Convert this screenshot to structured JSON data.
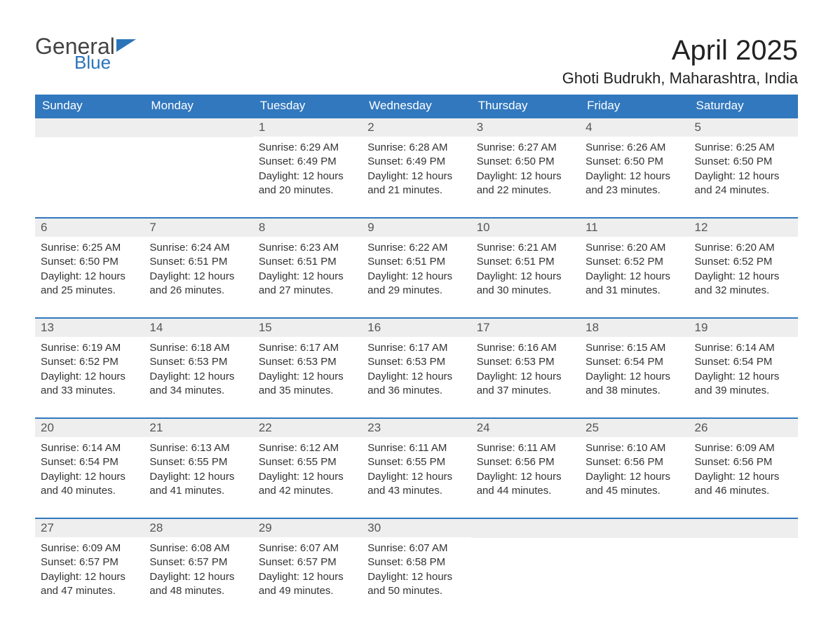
{
  "brand": {
    "word1": "General",
    "word2": "Blue"
  },
  "title": "April 2025",
  "location": "Ghoti Budrukh, Maharashtra, India",
  "colors": {
    "header_bg": "#3178be",
    "header_fg": "#ffffff",
    "daynum_bg": "#eeeeee",
    "row_divider": "#3178be",
    "page_bg": "#ffffff",
    "text": "#333333",
    "brand_blue": "#2b74ba"
  },
  "fonts": {
    "title_size_pt": 30,
    "location_size_pt": 16,
    "header_size_pt": 13,
    "body_size_pt": 11
  },
  "layout": {
    "columns": 7,
    "rows": 5,
    "aspect": "1188x918"
  },
  "weekdays": [
    "Sunday",
    "Monday",
    "Tuesday",
    "Wednesday",
    "Thursday",
    "Friday",
    "Saturday"
  ],
  "weeks": [
    [
      {
        "day": "",
        "sunrise": "",
        "sunset": "",
        "daylight": ""
      },
      {
        "day": "",
        "sunrise": "",
        "sunset": "",
        "daylight": ""
      },
      {
        "day": "1",
        "sunrise": "Sunrise: 6:29 AM",
        "sunset": "Sunset: 6:49 PM",
        "daylight": "Daylight: 12 hours and 20 minutes."
      },
      {
        "day": "2",
        "sunrise": "Sunrise: 6:28 AM",
        "sunset": "Sunset: 6:49 PM",
        "daylight": "Daylight: 12 hours and 21 minutes."
      },
      {
        "day": "3",
        "sunrise": "Sunrise: 6:27 AM",
        "sunset": "Sunset: 6:50 PM",
        "daylight": "Daylight: 12 hours and 22 minutes."
      },
      {
        "day": "4",
        "sunrise": "Sunrise: 6:26 AM",
        "sunset": "Sunset: 6:50 PM",
        "daylight": "Daylight: 12 hours and 23 minutes."
      },
      {
        "day": "5",
        "sunrise": "Sunrise: 6:25 AM",
        "sunset": "Sunset: 6:50 PM",
        "daylight": "Daylight: 12 hours and 24 minutes."
      }
    ],
    [
      {
        "day": "6",
        "sunrise": "Sunrise: 6:25 AM",
        "sunset": "Sunset: 6:50 PM",
        "daylight": "Daylight: 12 hours and 25 minutes."
      },
      {
        "day": "7",
        "sunrise": "Sunrise: 6:24 AM",
        "sunset": "Sunset: 6:51 PM",
        "daylight": "Daylight: 12 hours and 26 minutes."
      },
      {
        "day": "8",
        "sunrise": "Sunrise: 6:23 AM",
        "sunset": "Sunset: 6:51 PM",
        "daylight": "Daylight: 12 hours and 27 minutes."
      },
      {
        "day": "9",
        "sunrise": "Sunrise: 6:22 AM",
        "sunset": "Sunset: 6:51 PM",
        "daylight": "Daylight: 12 hours and 29 minutes."
      },
      {
        "day": "10",
        "sunrise": "Sunrise: 6:21 AM",
        "sunset": "Sunset: 6:51 PM",
        "daylight": "Daylight: 12 hours and 30 minutes."
      },
      {
        "day": "11",
        "sunrise": "Sunrise: 6:20 AM",
        "sunset": "Sunset: 6:52 PM",
        "daylight": "Daylight: 12 hours and 31 minutes."
      },
      {
        "day": "12",
        "sunrise": "Sunrise: 6:20 AM",
        "sunset": "Sunset: 6:52 PM",
        "daylight": "Daylight: 12 hours and 32 minutes."
      }
    ],
    [
      {
        "day": "13",
        "sunrise": "Sunrise: 6:19 AM",
        "sunset": "Sunset: 6:52 PM",
        "daylight": "Daylight: 12 hours and 33 minutes."
      },
      {
        "day": "14",
        "sunrise": "Sunrise: 6:18 AM",
        "sunset": "Sunset: 6:53 PM",
        "daylight": "Daylight: 12 hours and 34 minutes."
      },
      {
        "day": "15",
        "sunrise": "Sunrise: 6:17 AM",
        "sunset": "Sunset: 6:53 PM",
        "daylight": "Daylight: 12 hours and 35 minutes."
      },
      {
        "day": "16",
        "sunrise": "Sunrise: 6:17 AM",
        "sunset": "Sunset: 6:53 PM",
        "daylight": "Daylight: 12 hours and 36 minutes."
      },
      {
        "day": "17",
        "sunrise": "Sunrise: 6:16 AM",
        "sunset": "Sunset: 6:53 PM",
        "daylight": "Daylight: 12 hours and 37 minutes."
      },
      {
        "day": "18",
        "sunrise": "Sunrise: 6:15 AM",
        "sunset": "Sunset: 6:54 PM",
        "daylight": "Daylight: 12 hours and 38 minutes."
      },
      {
        "day": "19",
        "sunrise": "Sunrise: 6:14 AM",
        "sunset": "Sunset: 6:54 PM",
        "daylight": "Daylight: 12 hours and 39 minutes."
      }
    ],
    [
      {
        "day": "20",
        "sunrise": "Sunrise: 6:14 AM",
        "sunset": "Sunset: 6:54 PM",
        "daylight": "Daylight: 12 hours and 40 minutes."
      },
      {
        "day": "21",
        "sunrise": "Sunrise: 6:13 AM",
        "sunset": "Sunset: 6:55 PM",
        "daylight": "Daylight: 12 hours and 41 minutes."
      },
      {
        "day": "22",
        "sunrise": "Sunrise: 6:12 AM",
        "sunset": "Sunset: 6:55 PM",
        "daylight": "Daylight: 12 hours and 42 minutes."
      },
      {
        "day": "23",
        "sunrise": "Sunrise: 6:11 AM",
        "sunset": "Sunset: 6:55 PM",
        "daylight": "Daylight: 12 hours and 43 minutes."
      },
      {
        "day": "24",
        "sunrise": "Sunrise: 6:11 AM",
        "sunset": "Sunset: 6:56 PM",
        "daylight": "Daylight: 12 hours and 44 minutes."
      },
      {
        "day": "25",
        "sunrise": "Sunrise: 6:10 AM",
        "sunset": "Sunset: 6:56 PM",
        "daylight": "Daylight: 12 hours and 45 minutes."
      },
      {
        "day": "26",
        "sunrise": "Sunrise: 6:09 AM",
        "sunset": "Sunset: 6:56 PM",
        "daylight": "Daylight: 12 hours and 46 minutes."
      }
    ],
    [
      {
        "day": "27",
        "sunrise": "Sunrise: 6:09 AM",
        "sunset": "Sunset: 6:57 PM",
        "daylight": "Daylight: 12 hours and 47 minutes."
      },
      {
        "day": "28",
        "sunrise": "Sunrise: 6:08 AM",
        "sunset": "Sunset: 6:57 PM",
        "daylight": "Daylight: 12 hours and 48 minutes."
      },
      {
        "day": "29",
        "sunrise": "Sunrise: 6:07 AM",
        "sunset": "Sunset: 6:57 PM",
        "daylight": "Daylight: 12 hours and 49 minutes."
      },
      {
        "day": "30",
        "sunrise": "Sunrise: 6:07 AM",
        "sunset": "Sunset: 6:58 PM",
        "daylight": "Daylight: 12 hours and 50 minutes."
      },
      {
        "day": "",
        "sunrise": "",
        "sunset": "",
        "daylight": ""
      },
      {
        "day": "",
        "sunrise": "",
        "sunset": "",
        "daylight": ""
      },
      {
        "day": "",
        "sunrise": "",
        "sunset": "",
        "daylight": ""
      }
    ]
  ]
}
